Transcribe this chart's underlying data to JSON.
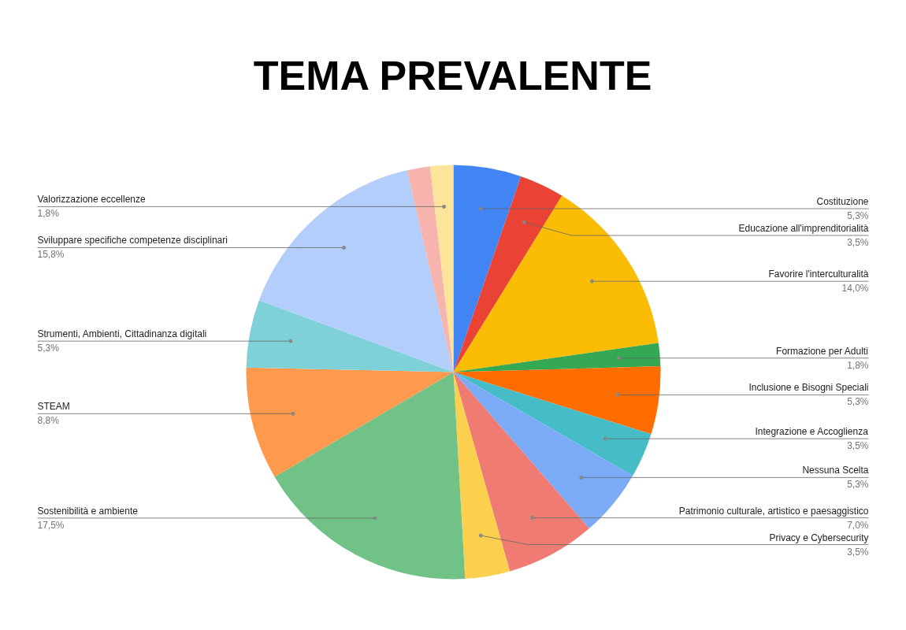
{
  "chart_data": {
    "type": "pie",
    "title": "TEMA PREVALENTE",
    "categories": [
      "Costituzione",
      "Educazione all'imprenditorialità",
      "Favorire l'interculturalità",
      "Formazione per Adulti",
      "Inclusione e Bisogni Speciali",
      "Integrazione e Accoglienza",
      "Nessuna Scelta",
      "Patrimonio culturale, artistico e paesaggistico",
      "Privacy e Cybersecurity",
      "Sostenibilità e ambiente",
      "STEAM",
      "Strumenti, Ambienti, Cittadinanza digitali",
      "Sviluppare specifiche competenze disciplinari",
      null,
      "Valorizzazione eccellenze"
    ],
    "values": [
      5.3,
      3.5,
      14.0,
      1.8,
      5.3,
      3.5,
      5.3,
      7.0,
      3.5,
      17.5,
      8.8,
      5.3,
      15.8,
      1.8,
      1.8
    ],
    "value_labels": [
      "5,3%",
      "3,5%",
      "14,0%",
      "1,8%",
      "5,3%",
      "3,5%",
      "5,3%",
      "7,0%",
      "3,5%",
      "17,5%",
      "8,8%",
      "5,3%",
      "15,8%",
      null,
      "1,8%"
    ],
    "colors": [
      "#4285f4",
      "#ea4335",
      "#fbbc04",
      "#34a853",
      "#ff6d01",
      "#46bdc6",
      "#7baaf7",
      "#f07b72",
      "#fcd04f",
      "#71c287",
      "#ff994d",
      "#7ed1d7",
      "#b3cefb",
      "#f7b4ae",
      "#fde49b"
    ]
  }
}
